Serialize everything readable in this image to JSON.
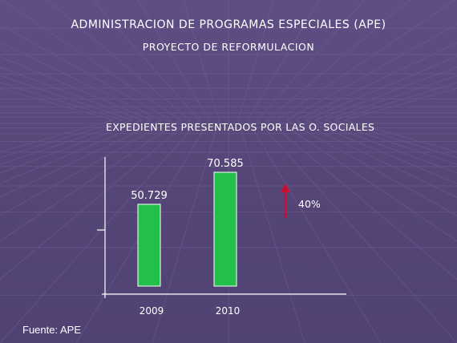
{
  "header": {
    "title": "ADMINISTRACION DE PROGRAMAS ESPECIALES (APE)",
    "subtitle": "PROYECTO  DE  REFORMULACION"
  },
  "footer": {
    "source": "Fuente: APE"
  },
  "colors": {
    "background": "#5a4a7e",
    "bar": "#22c04a",
    "arrow": "#c8102e",
    "text": "#ffffff"
  },
  "chart_data": {
    "type": "bar",
    "title": "EXPEDIENTES  PRESENTADOS POR LAS O. SOCIALES",
    "categories": [
      "2009",
      "2010"
    ],
    "values": [
      50729,
      70585
    ],
    "value_labels": [
      "50.729",
      "70.585"
    ],
    "ylim": [
      0,
      80000
    ],
    "grid": false,
    "annotation": {
      "text": "40%",
      "icon": "up-arrow-icon"
    }
  }
}
